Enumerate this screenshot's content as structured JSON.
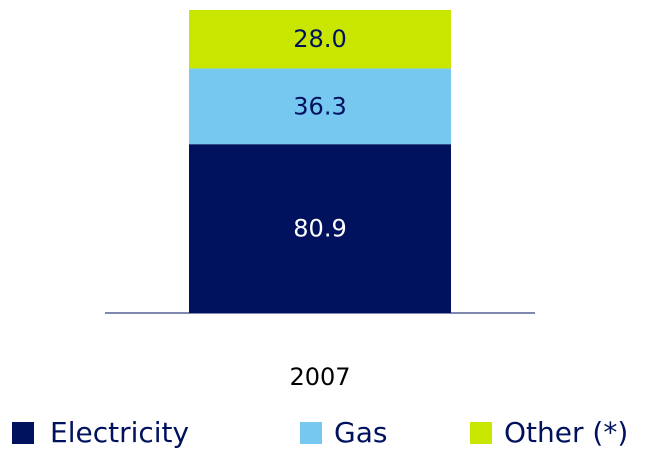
{
  "chart_data": {
    "type": "stacked_bar",
    "categories": [
      "2007"
    ],
    "series": [
      {
        "name": "Electricity",
        "color": "#00125e",
        "values": [
          80.9
        ],
        "value_labels": [
          "80.9"
        ]
      },
      {
        "name": "Gas",
        "color": "#77c8f0",
        "values": [
          36.3
        ],
        "value_labels": [
          "36.3"
        ]
      },
      {
        "name": "Other (*)",
        "color": "#c8e600",
        "values": [
          28.0
        ],
        "value_labels": [
          "28.0"
        ]
      }
    ],
    "legend": "bottom"
  }
}
